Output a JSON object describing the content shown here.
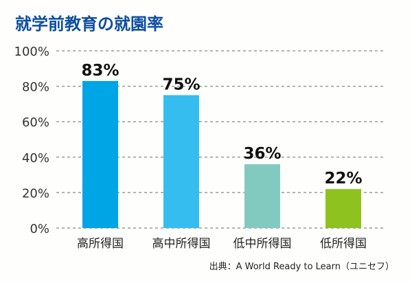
{
  "chart_data": {
    "type": "bar",
    "title": "就学前教育の就園率",
    "categories": [
      "高所得国",
      "高中所得国",
      "低中所得国",
      "低所得国"
    ],
    "values": [
      83,
      75,
      36,
      22
    ],
    "data_labels": [
      "83%",
      "75%",
      "36%",
      "22%"
    ],
    "colors": [
      "#00a5e5",
      "#35bdef",
      "#82cabf",
      "#8dc21f"
    ],
    "title_color": "#0d4ea1",
    "ylim": [
      0,
      100
    ],
    "yticks": [
      0,
      20,
      40,
      60,
      80,
      100
    ],
    "ytick_labels": [
      "0%",
      "20%",
      "40%",
      "60%",
      "80%",
      "100%"
    ],
    "xlabel": "",
    "ylabel": "",
    "grid": "horizontal-dashed",
    "legend": "none",
    "source": "出典：A World Ready to Learn（ユニセフ）"
  }
}
